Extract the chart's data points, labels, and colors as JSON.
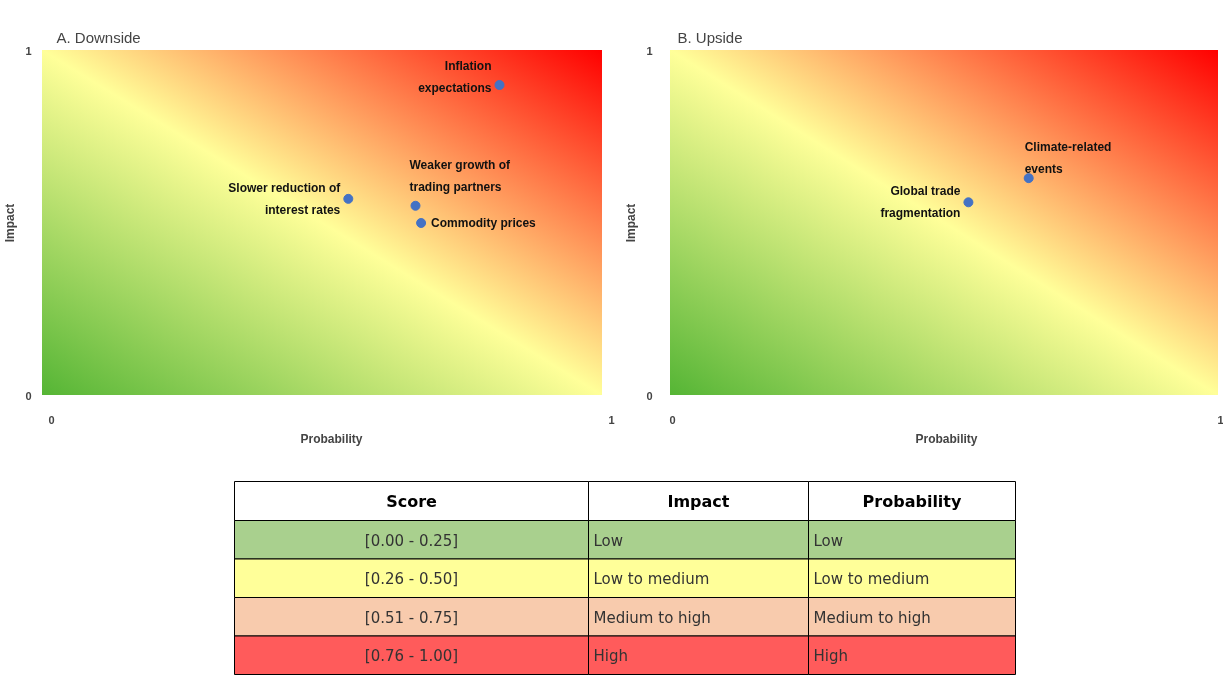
{
  "chart_data": [
    {
      "type": "scatter",
      "title": "A.    Downside",
      "xlabel": "Probability",
      "ylabel": "Impact",
      "xlim": [
        0,
        1
      ],
      "ylim": [
        0,
        1
      ],
      "xticks": [
        0,
        1
      ],
      "yticks": [
        0,
        1
      ],
      "marker": "circle",
      "series": [
        {
          "color": "#4472c4",
          "x": [
            0.8,
            0.53,
            0.65,
            0.66
          ],
          "values": [
            0.9,
            0.57,
            0.55,
            0.5
          ]
        }
      ],
      "annotations": [
        {
          "text": "Inflation\nexpectations",
          "x": 0.8,
          "y": 0.9
        },
        {
          "text": "Slower reduction of\ninterest rates",
          "x": 0.53,
          "y": 0.57
        },
        {
          "text": "Weaker growth of\ntrading partners",
          "x": 0.65,
          "y": 0.55
        },
        {
          "text": "Commodity prices",
          "x": 0.66,
          "y": 0.5
        }
      ]
    },
    {
      "type": "scatter",
      "title": "B.    Upside",
      "xlabel": "Probability",
      "ylabel": "Impact",
      "xlim": [
        0,
        1
      ],
      "ylim": [
        0,
        1
      ],
      "xticks": [
        0,
        1
      ],
      "yticks": [
        0,
        1
      ],
      "marker": "circle",
      "series": [
        {
          "color": "#4472c4",
          "x": [
            0.54,
            0.65
          ],
          "values": [
            0.56,
            0.63
          ]
        }
      ],
      "annotations": [
        {
          "text": "Global trade\nfragmentation",
          "x": 0.54,
          "y": 0.56
        },
        {
          "text": "Climate-related\nevents",
          "x": 0.65,
          "y": 0.63
        }
      ]
    },
    {
      "type": "other",
      "categories": [
        "Score",
        "Impact",
        "Probability"
      ],
      "cell_labels": [
        [
          "[0.00 - 0.25]",
          "Low",
          "Low"
        ],
        [
          "[0.26 - 0.50]",
          "Low to medium",
          "Low to medium"
        ],
        [
          "[0.51 - 0.75]",
          "Medium to high",
          "Medium to high"
        ],
        [
          "[0.76 - 1.00]",
          "High",
          "High"
        ]
      ]
    }
  ]
}
